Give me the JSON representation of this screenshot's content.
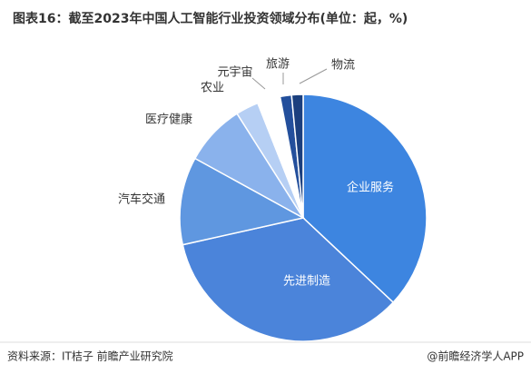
{
  "chart_data": {
    "type": "pie",
    "title": "图表16：截至2023年中国人工智能行业投资领域分布(单位：起，%)",
    "categories": [
      "企业服务",
      "先进制造",
      "汽车交通",
      "医疗健康",
      "农业",
      "元宇宙",
      "旅游",
      "物流"
    ],
    "values": [
      37,
      34.5,
      11.5,
      8,
      3,
      3,
      1.5,
      1.5
    ],
    "colors": [
      "#3d85e0",
      "#4b84da",
      "#5f97e0",
      "#8ab2ec",
      "#b6cff4",
      "#ffffff",
      "#234f9c",
      "#1b3f7e"
    ]
  },
  "source": "资料来源：IT桔子 前瞻产业研究院",
  "credit": "@前瞻经济学人APP"
}
